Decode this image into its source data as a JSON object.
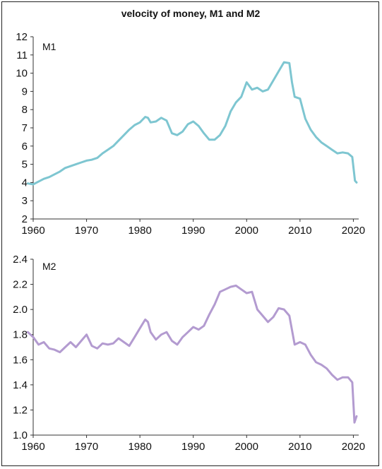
{
  "chart_data": [
    {
      "type": "line",
      "title": "velocity of money, M1 and M2",
      "panel_label": "M1",
      "xlim": [
        1960,
        2021
      ],
      "ylim": [
        2,
        12
      ],
      "x_ticks": [
        "1960",
        "1970",
        "1980",
        "1990",
        "2000",
        "2010",
        "2020"
      ],
      "y_ticks": [
        "2",
        "3",
        "4",
        "5",
        "6",
        "7",
        "8",
        "9",
        "10",
        "11",
        "12"
      ],
      "grid": false,
      "color": "#7ec6d1",
      "series": [
        {
          "x": [
            1959,
            1960,
            1961,
            1962,
            1963,
            1964,
            1965,
            1966,
            1967,
            1968,
            1969,
            1970,
            1971,
            1972,
            1973,
            1974,
            1975,
            1976,
            1977,
            1978,
            1979,
            1980,
            1981,
            1981.5,
            1982,
            1983,
            1984,
            1985,
            1986,
            1987,
            1988,
            1989,
            1990,
            1991,
            1992,
            1993,
            1994,
            1995,
            1996,
            1997,
            1998,
            1999,
            2000,
            2001,
            2002,
            2003,
            2004,
            2005,
            2006,
            2007,
            2008,
            2008.5,
            2009,
            2010,
            2011,
            2012,
            2013,
            2014,
            2015,
            2016,
            2017,
            2018,
            2019,
            2019.8,
            2020.3,
            2020.6
          ],
          "y": [
            3.95,
            3.9,
            4.05,
            4.2,
            4.3,
            4.45,
            4.6,
            4.8,
            4.9,
            5.0,
            5.1,
            5.2,
            5.25,
            5.35,
            5.6,
            5.8,
            6.0,
            6.3,
            6.6,
            6.9,
            7.15,
            7.3,
            7.6,
            7.55,
            7.3,
            7.35,
            7.55,
            7.4,
            6.7,
            6.6,
            6.8,
            7.2,
            7.35,
            7.1,
            6.7,
            6.35,
            6.35,
            6.6,
            7.1,
            7.9,
            8.4,
            8.7,
            9.5,
            9.1,
            9.2,
            9.0,
            9.1,
            9.6,
            10.1,
            10.6,
            10.55,
            9.5,
            8.7,
            8.6,
            7.5,
            6.9,
            6.5,
            6.2,
            6.0,
            5.8,
            5.6,
            5.65,
            5.6,
            5.4,
            4.1,
            4.0
          ]
        }
      ]
    },
    {
      "type": "line",
      "panel_label": "M2",
      "xlim": [
        1960,
        2021
      ],
      "ylim": [
        1.0,
        2.4
      ],
      "x_ticks": [
        "1960",
        "1970",
        "1980",
        "1990",
        "2000",
        "2010",
        "2020"
      ],
      "y_ticks": [
        "1.0",
        "1.2",
        "1.4",
        "1.6",
        "1.8",
        "2.0",
        "2.2",
        "2.4"
      ],
      "grid": false,
      "color": "#b39bd0",
      "series": [
        {
          "x": [
            1959,
            1960,
            1961,
            1962,
            1963,
            1964,
            1965,
            1966,
            1967,
            1968,
            1969,
            1970,
            1971,
            1972,
            1973,
            1974,
            1975,
            1976,
            1977,
            1978,
            1979,
            1980,
            1981,
            1981.5,
            1982,
            1983,
            1984,
            1985,
            1986,
            1987,
            1988,
            1989,
            1990,
            1991,
            1992,
            1993,
            1994,
            1995,
            1996,
            1997,
            1998,
            1999,
            2000,
            2001,
            2002,
            2003,
            2004,
            2005,
            2006,
            2007,
            2008,
            2009,
            2010,
            2011,
            2012,
            2013,
            2014,
            2015,
            2016,
            2017,
            2018,
            2019,
            2019.8,
            2020.2,
            2020.6
          ],
          "y": [
            1.82,
            1.78,
            1.72,
            1.74,
            1.69,
            1.68,
            1.66,
            1.7,
            1.74,
            1.7,
            1.75,
            1.8,
            1.71,
            1.69,
            1.73,
            1.72,
            1.73,
            1.77,
            1.74,
            1.71,
            1.78,
            1.85,
            1.92,
            1.9,
            1.82,
            1.76,
            1.8,
            1.82,
            1.75,
            1.72,
            1.78,
            1.82,
            1.86,
            1.84,
            1.87,
            1.96,
            2.04,
            2.14,
            2.16,
            2.18,
            2.19,
            2.16,
            2.13,
            2.14,
            2.0,
            1.95,
            1.9,
            1.94,
            2.01,
            2.0,
            1.95,
            1.72,
            1.74,
            1.72,
            1.64,
            1.58,
            1.56,
            1.53,
            1.48,
            1.44,
            1.46,
            1.46,
            1.42,
            1.1,
            1.15
          ]
        }
      ]
    }
  ]
}
